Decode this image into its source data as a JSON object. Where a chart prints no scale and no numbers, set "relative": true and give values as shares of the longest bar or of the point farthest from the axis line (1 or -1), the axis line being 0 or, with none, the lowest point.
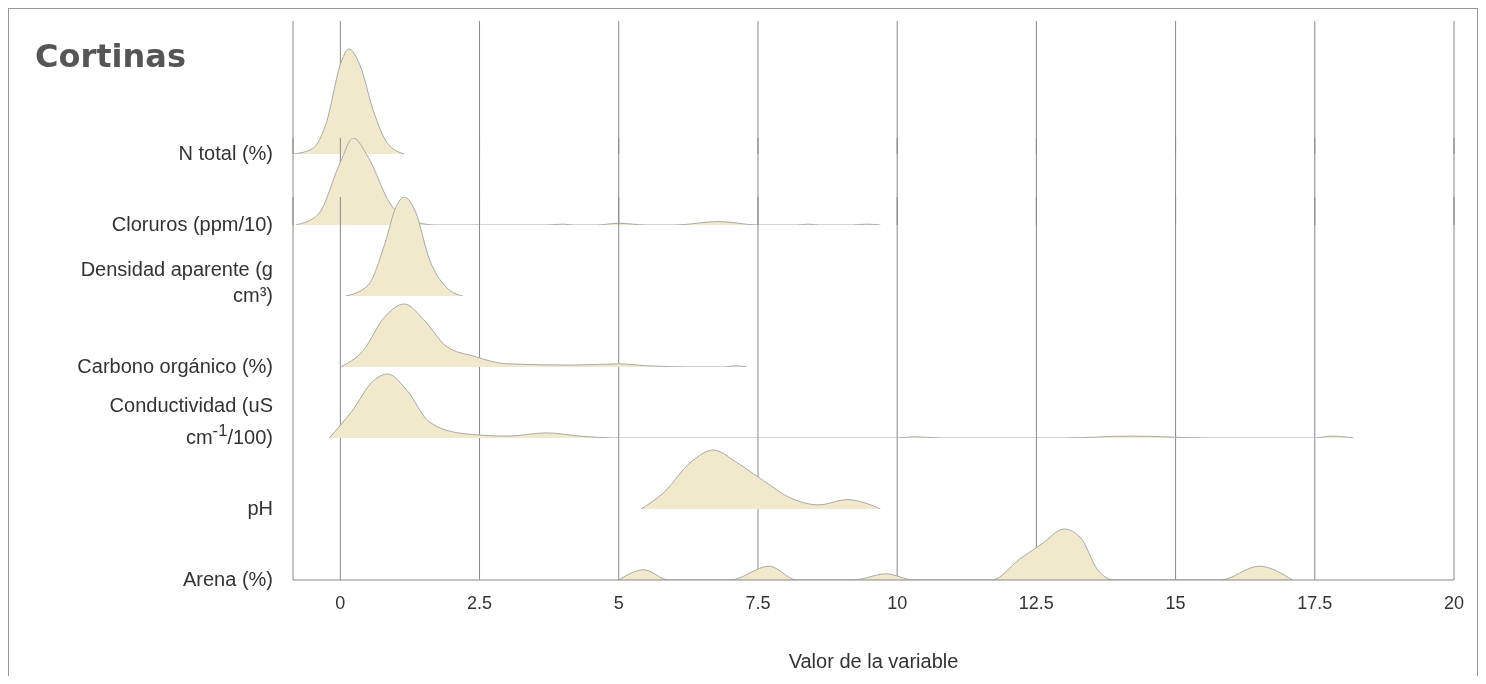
{
  "chart_data": [
    {
      "type": "area",
      "relative": true,
      "title": "Cortinas",
      "xlim": [
        -0.85,
        20
      ],
      "xticks": [
        0,
        2.5,
        5,
        7.5,
        10,
        12.5,
        15,
        17.5,
        20
      ],
      "grid": "x",
      "tick_labels": false,
      "series": [
        {
          "name": "N total (%)",
          "color": "#f0e9cc",
          "x": [
            -0.84,
            -0.5,
            -0.25,
            0,
            0.15,
            0.35,
            0.6,
            0.85,
            1.15
          ],
          "values": [
            0,
            0.05,
            0.3,
            0.85,
            1,
            0.85,
            0.4,
            0.1,
            0
          ]
        }
      ]
    },
    {
      "type": "area",
      "relative": true,
      "xlim": [
        -0.85,
        20
      ],
      "xticks": [
        0,
        2.5,
        5,
        7.5,
        10,
        12.5,
        15,
        17.5,
        20
      ],
      "grid": "x",
      "tick_labels": false,
      "series": [
        {
          "name": "Cloruros (ppm/10)",
          "color": "#f0e9cc",
          "x": [
            -0.8,
            -0.4,
            0,
            0.23,
            0.5,
            0.9,
            1.3,
            1.7,
            3.7,
            4,
            4.2,
            4.6,
            5,
            5.5,
            6,
            6.8,
            7.5,
            8.2,
            8.4,
            8.6,
            9.2,
            9.45,
            9.7
          ],
          "values": [
            0,
            0.12,
            0.72,
            1,
            0.78,
            0.24,
            0.05,
            0,
            0,
            0.01,
            0,
            0,
            0.02,
            0,
            0,
            0.04,
            0,
            0,
            0.01,
            0,
            0,
            0.01,
            0
          ]
        }
      ]
    },
    {
      "type": "area",
      "relative": true,
      "xlim": [
        -0.85,
        20
      ],
      "xticks": [
        0,
        2.5,
        5,
        7.5,
        10,
        12.5,
        15,
        17.5,
        20
      ],
      "grid": "x",
      "tick_labels": false,
      "series": [
        {
          "name": "Densidad aparente (g cm³)",
          "color": "#f0e9cc",
          "x": [
            0.1,
            0.5,
            0.8,
            1,
            1.15,
            1.35,
            1.6,
            1.9,
            2.2
          ],
          "values": [
            0,
            0.11,
            0.53,
            0.9,
            1,
            0.85,
            0.37,
            0.09,
            0
          ]
        }
      ]
    },
    {
      "type": "area",
      "relative": true,
      "xlim": [
        -0.85,
        20
      ],
      "xticks": [
        0,
        2.5,
        5,
        7.5,
        10,
        12.5,
        15,
        17.5,
        20
      ],
      "grid": "x",
      "tick_labels": false,
      "series": [
        {
          "name": "Carbono orgánico (%)",
          "color": "#f0e9cc",
          "x": [
            0,
            0.4,
            0.8,
            1.15,
            1.5,
            1.9,
            2.4,
            3,
            4.2,
            5,
            5.5,
            6.3,
            6.9,
            7.1,
            7.3
          ],
          "values": [
            0,
            0.25,
            0.8,
            1,
            0.75,
            0.33,
            0.17,
            0.05,
            0.03,
            0.05,
            0.02,
            0,
            0,
            0.02,
            0
          ]
        }
      ]
    },
    {
      "type": "area",
      "relative": true,
      "xlim": [
        -0.85,
        20
      ],
      "xticks": [
        0,
        2.5,
        5,
        7.5,
        10,
        12.5,
        15,
        17.5,
        20
      ],
      "grid": "x",
      "tick_labels": false,
      "series": [
        {
          "name": "Conductividad (uS cm$^{-1}$/100)",
          "color": "#f0e9cc",
          "x": [
            -0.2,
            0.2,
            0.6,
            0.85,
            1.2,
            1.6,
            2.2,
            3,
            3.7,
            4.3,
            5,
            10,
            10.3,
            10.8,
            13,
            14.2,
            15.6,
            17.5,
            17.8,
            18.2
          ],
          "values": [
            0,
            0.41,
            0.9,
            1,
            0.74,
            0.25,
            0.07,
            0.03,
            0.08,
            0.03,
            0,
            0,
            0.02,
            0,
            0,
            0.03,
            0,
            0,
            0.03,
            0
          ]
        }
      ]
    },
    {
      "type": "area",
      "relative": true,
      "xlim": [
        -0.85,
        20
      ],
      "xticks": [
        0,
        2.5,
        5,
        7.5,
        10,
        12.5,
        15,
        17.5,
        20
      ],
      "grid": "x",
      "tick_labels": false,
      "series": [
        {
          "name": "pH",
          "color": "#f0e9cc",
          "x": [
            5.4,
            5.8,
            6.3,
            6.7,
            7.1,
            7.6,
            8.1,
            8.6,
            9.1,
            9.4,
            9.7
          ],
          "values": [
            0,
            0.27,
            0.8,
            1,
            0.8,
            0.48,
            0.18,
            0.07,
            0.16,
            0.11,
            0
          ]
        }
      ]
    },
    {
      "type": "area",
      "relative": true,
      "xlabel": "Valor de la variable",
      "xlim": [
        -0.85,
        20
      ],
      "xticks": [
        0,
        2.5,
        5,
        7.5,
        10,
        12.5,
        15,
        17.5,
        20
      ],
      "grid": "x",
      "tick_labels": "x",
      "series": [
        {
          "name": "Arena (%)",
          "color": "#f0e9cc",
          "x": [
            5,
            5.45,
            5.9,
            7,
            7.7,
            8.2,
            9.2,
            9.8,
            10.3,
            11.7,
            12.2,
            12.6,
            13,
            13.3,
            13.6,
            13.9,
            15.8,
            16.5,
            17.1
          ],
          "values": [
            0,
            0.2,
            0,
            0,
            0.27,
            0,
            0,
            0.12,
            0,
            0,
            0.41,
            0.71,
            1,
            0.82,
            0.2,
            0,
            0,
            0.27,
            0
          ]
        }
      ]
    }
  ]
}
